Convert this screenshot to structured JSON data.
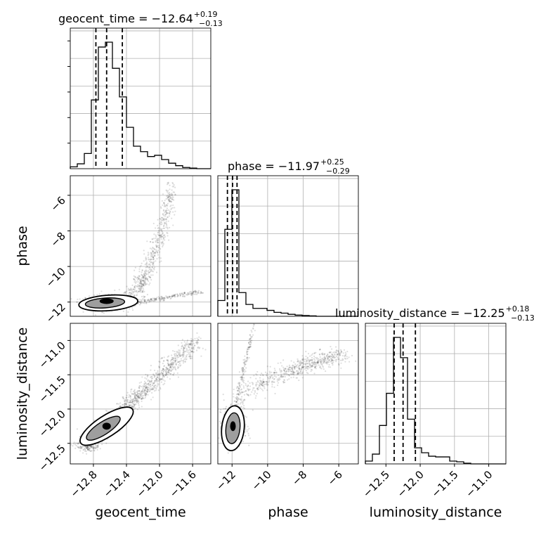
{
  "chart_data": {
    "type": "corner",
    "parameters": [
      "geocent_time",
      "phase",
      "luminosity_distance"
    ],
    "titles": [
      {
        "parameter": "geocent_time",
        "label": "geocent_time = −12.64",
        "plus": "+0.19",
        "minus": "−0.13"
      },
      {
        "parameter": "phase",
        "label": "phase = −11.97",
        "plus": "+0.25",
        "minus": "−0.29"
      },
      {
        "parameter": "luminosity_distance",
        "label": "luminosity_distance = −12.25",
        "plus": "+0.18",
        "minus": "−0.13"
      }
    ],
    "axes": {
      "geocent_time": {
        "range": [
          -13.08,
          -11.38
        ],
        "ticks": [
          -12.8,
          -12.4,
          -12.0,
          -11.6
        ],
        "tick_labels": [
          "−12.8",
          "−12.4",
          "−12.0",
          "−11.6"
        ]
      },
      "phase": {
        "range": [
          -12.8,
          -4.9
        ],
        "ticks": [
          -12,
          -10,
          -8,
          -6
        ],
        "tick_labels": [
          "−12",
          "−10",
          "−8",
          "−6"
        ]
      },
      "luminosity_distance": {
        "range": [
          -12.8,
          -10.75
        ],
        "ticks": [
          -12.5,
          -12.0,
          -11.5,
          -11.0
        ],
        "tick_labels": [
          "−12.5",
          "−12.0",
          "−11.5",
          "−11.0"
        ]
      }
    },
    "quantiles": {
      "geocent_time": [
        -12.77,
        -12.64,
        -12.45
      ],
      "phase": [
        -12.26,
        -11.97,
        -11.72
      ],
      "luminosity_distance": [
        -12.38,
        -12.25,
        -12.07
      ]
    },
    "histograms": {
      "geocent_time": {
        "edges": [
          -13.08,
          -12.995,
          -12.91,
          -12.825,
          -12.74,
          -12.655,
          -12.57,
          -12.485,
          -12.4,
          -12.315,
          -12.23,
          -12.145,
          -12.06,
          -11.975,
          -11.89,
          -11.805,
          -11.72,
          -11.635,
          -11.55,
          -11.465,
          -11.38
        ],
        "counts": [
          0.3,
          0.8,
          2.5,
          11.3,
          20.0,
          20.8,
          16.5,
          11.8,
          6.8,
          3.7,
          2.8,
          2.0,
          2.2,
          1.5,
          0.9,
          0.5,
          0.2,
          0.1,
          0.0,
          0.0
        ]
      },
      "phase": {
        "edges": [
          -12.8,
          -12.405,
          -12.01,
          -11.615,
          -11.22,
          -10.825,
          -10.43,
          -10.035,
          -9.64,
          -9.245,
          -8.85,
          -8.455,
          -8.06,
          -7.665,
          -7.27,
          -6.875,
          -6.48,
          -6.085,
          -5.69,
          -5.295,
          -4.9
        ],
        "counts": [
          0.4,
          2.2,
          3.2,
          0.6,
          0.3,
          0.2,
          0.2,
          0.15,
          0.1,
          0.08,
          0.05,
          0.03,
          0.02,
          0.01,
          0.0,
          0.0,
          0.0,
          0.0,
          0.0,
          0.0
        ]
      },
      "luminosity_distance": {
        "edges": [
          -12.8,
          -12.6975,
          -12.595,
          -12.4925,
          -12.39,
          -12.2875,
          -12.185,
          -12.0825,
          -11.98,
          -11.8775,
          -11.775,
          -11.6725,
          -11.57,
          -11.4675,
          -11.365,
          -11.2625,
          -11.16,
          -11.0575,
          -10.955,
          -10.8525,
          -10.75
        ],
        "counts": [
          0.4,
          1.4,
          5.5,
          10.1,
          18.1,
          15.2,
          6.4,
          2.3,
          1.6,
          1.1,
          1.0,
          1.0,
          0.4,
          0.3,
          0.1,
          0.0,
          0.0,
          0.0,
          0.0,
          0.0
        ]
      }
    },
    "grid": true
  }
}
